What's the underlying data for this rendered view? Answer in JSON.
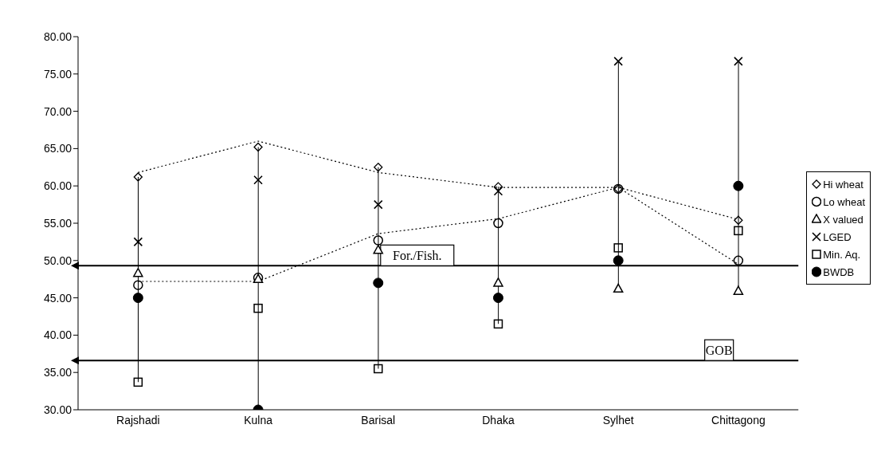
{
  "chart_data": {
    "type": "scatter",
    "categories": [
      "Rajshadi",
      "Kulna",
      "Barisal",
      "Dhaka",
      "Sylhet",
      "Chittagong"
    ],
    "series": [
      {
        "type": "line",
        "color": "#000000",
        "line_style": "dotted",
        "marker": "none",
        "values": [
          61.8,
          66.0,
          61.8,
          59.8,
          59.8,
          55.5
        ]
      },
      {
        "type": "line",
        "color": "#000000",
        "line_style": "dotted",
        "marker": "none",
        "values": [
          47.2,
          47.2,
          53.6,
          55.6,
          59.8,
          49.5
        ]
      },
      {
        "name": "Hi wheat",
        "color": "#000000",
        "marker": "diamond",
        "values": [
          61.2,
          65.2,
          62.5,
          59.9,
          59.6,
          55.4
        ]
      },
      {
        "name": "Lo wheat",
        "color": "#000000",
        "marker": "circle",
        "values": [
          46.7,
          47.7,
          52.7,
          55.0,
          59.6,
          50.0
        ]
      },
      {
        "name": "X valued",
        "color": "#000000",
        "marker": "triangle",
        "values": [
          48.3,
          47.5,
          51.4,
          47.0,
          46.2,
          45.9
        ]
      },
      {
        "name": "LGED",
        "color": "#000000",
        "marker": "cross",
        "values": [
          52.5,
          60.8,
          57.5,
          59.3,
          76.7,
          76.7
        ]
      },
      {
        "name": "Min. Aq.",
        "color": "#000000",
        "marker": "square",
        "values": [
          33.7,
          43.6,
          35.5,
          41.5,
          51.7,
          54.0
        ]
      },
      {
        "name": "BWDB",
        "color": "#000000",
        "marker": "filled_circle",
        "values": [
          45.0,
          30.0,
          47.0,
          45.0,
          50.0,
          60.0
        ]
      },
      {
        "type": "bar",
        "color": "#000000",
        "base": [
          33.7,
          30.0,
          35.5,
          41.5,
          46.2,
          45.9
        ],
        "values": [
          27.5,
          35.2,
          27.0,
          18.4,
          30.5,
          30.8
        ]
      }
    ],
    "ylim": [
      30,
      80
    ],
    "yticks": [
      {
        "value": 30,
        "label": "30.00"
      },
      {
        "value": 35,
        "label": "35.00"
      },
      {
        "value": 40,
        "label": "40.00"
      },
      {
        "value": 45,
        "label": "45.00"
      },
      {
        "value": 50,
        "label": "50.00"
      },
      {
        "value": 55,
        "label": "55.00"
      },
      {
        "value": 60,
        "label": "60.00"
      },
      {
        "value": 65,
        "label": "65.00"
      },
      {
        "value": 70,
        "label": "70.00"
      },
      {
        "value": 75,
        "label": "75.00"
      },
      {
        "value": 80,
        "label": "80.00"
      }
    ],
    "ref_lines": [
      {
        "axis": "y",
        "value": 49.3,
        "label": "For./Fish.",
        "color": "#000000"
      },
      {
        "axis": "y",
        "value": 36.6,
        "label": "GOB",
        "color": "#000000"
      }
    ],
    "grid": false,
    "legend": "right"
  }
}
